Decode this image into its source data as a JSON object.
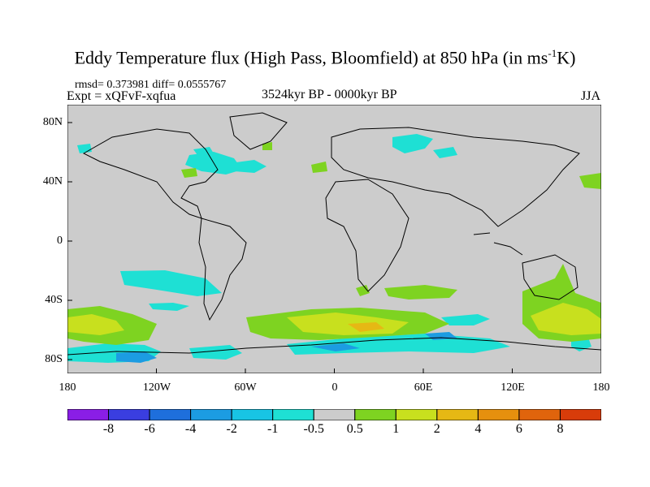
{
  "title": {
    "main": "Eddy Temperature flux (High Pass, Bloomfield) at 850 hPa (in ms",
    "sup": "-1",
    "end": "K)"
  },
  "stats": "rmsd= 0.373981 diff= 0.0555767",
  "experiment": "Expt = xQFvF-xqfua",
  "period": "3524kyr BP - 0000kyr BP",
  "season": "JJA",
  "axes": {
    "y_labels": [
      "80N",
      "40N",
      "0",
      "40S",
      "80S"
    ],
    "x_labels": [
      "180",
      "120W",
      "60W",
      "0",
      "60E",
      "120E",
      "180"
    ]
  },
  "colorbar": {
    "labels": [
      "-8",
      "-6",
      "-4",
      "-2",
      "-1",
      "-0.5",
      "0.5",
      "1",
      "2",
      "4",
      "6",
      "8"
    ],
    "colors": [
      "#8a1ee6",
      "#3a3ee0",
      "#1e6fdc",
      "#1c9ce2",
      "#18c4e4",
      "#1ee0d4",
      "#cccccc",
      "#7ed321",
      "#c8e01e",
      "#e6b814",
      "#e6900e",
      "#e0640c",
      "#d83c0a"
    ]
  },
  "colors": {
    "background": "#cccccc",
    "cyan": "#1ee0d4",
    "sky": "#18c4e4",
    "blue": "#1c9ce2",
    "green": "#7ed321",
    "yellow": "#c8e01e",
    "orange": "#e6b814"
  }
}
